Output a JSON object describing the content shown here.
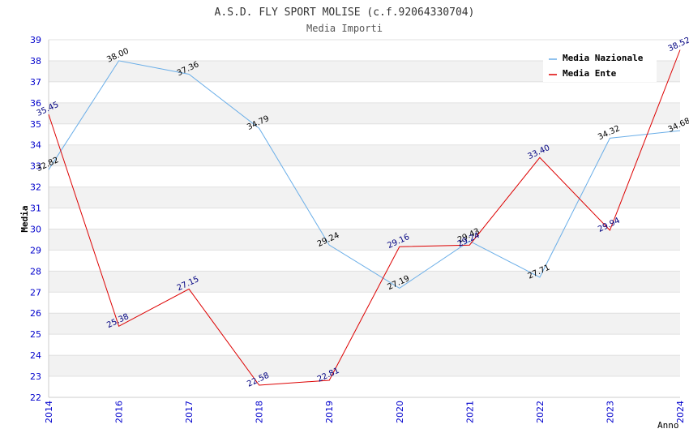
{
  "chart_data": {
    "type": "line",
    "title": "A.S.D. FLY SPORT MOLISE (c.f.92064330704)",
    "subtitle": "Media Importi",
    "xlabel": "Anno",
    "ylabel": "Media",
    "categories": [
      "2014",
      "2016",
      "2017",
      "2018",
      "2019",
      "2020",
      "2021",
      "2022",
      "2023",
      "2024"
    ],
    "ylim": [
      22,
      39
    ],
    "yticks": [
      22,
      23,
      24,
      25,
      26,
      27,
      28,
      29,
      30,
      31,
      32,
      33,
      34,
      35,
      36,
      37,
      38,
      39
    ],
    "series": [
      {
        "name": "Media Nazionale",
        "color": "#6aaee8",
        "values": [
          32.82,
          38.0,
          37.36,
          34.79,
          29.24,
          27.19,
          29.43,
          27.71,
          34.32,
          34.68
        ],
        "labels": [
          "32.82",
          "38.00",
          "37.36",
          "34.79",
          "29.24",
          "27.19",
          "29.43",
          "27.71",
          "34.32",
          "34.68"
        ]
      },
      {
        "name": "Media Ente",
        "color": "#dd0000",
        "values": [
          35.45,
          25.38,
          27.15,
          22.58,
          22.81,
          29.16,
          29.24,
          33.4,
          29.94,
          38.52
        ],
        "labels": [
          "35.45",
          "25.38",
          "27.15",
          "22.58",
          "22.81",
          "29.16",
          "29.24",
          "33.40",
          "29.94",
          "38.52"
        ]
      }
    ],
    "legend_position": "top-right",
    "grid": true
  }
}
